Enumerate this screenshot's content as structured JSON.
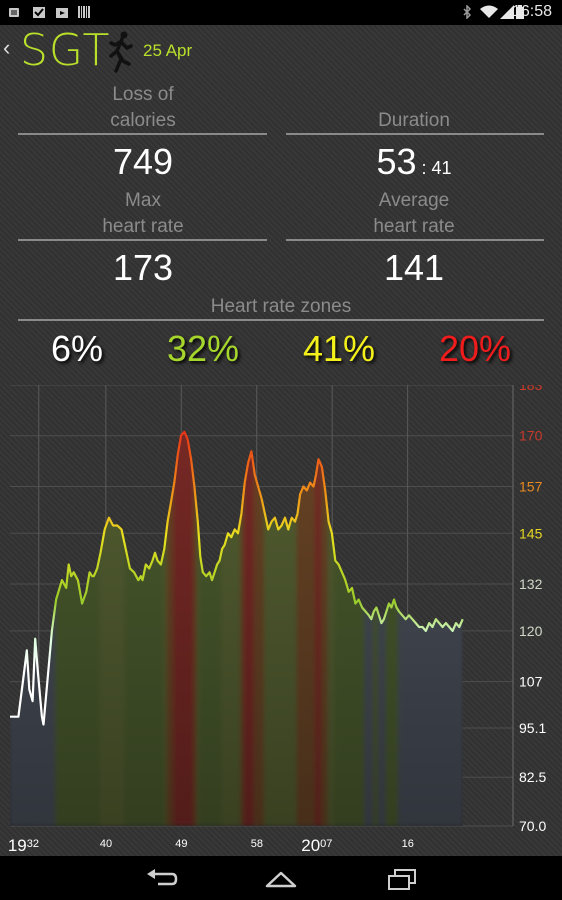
{
  "status_bar": {
    "time": "16:58",
    "icons": [
      "android-debug-icon",
      "checkbox-notification-icon",
      "bag-notification-icon",
      "barcode-notification-icon",
      "bluetooth-icon",
      "wifi-icon",
      "signal-icon",
      "battery-icon"
    ]
  },
  "header": {
    "title": "SGT",
    "date": "25 Apr",
    "icons": [
      "back-chevron-icon",
      "runner-icon"
    ]
  },
  "stats": {
    "calories": {
      "label_line1": "Loss of",
      "label_line2": "calories",
      "value": "749"
    },
    "duration": {
      "label": "Duration",
      "minutes": "53",
      "separator": ":",
      "seconds": "41"
    },
    "max_hr": {
      "label_line1": "Max",
      "label_line2": "heart rate",
      "value": "173"
    },
    "avg_hr": {
      "label_line1": "Average",
      "label_line2": "heart rate",
      "value": "141"
    }
  },
  "zones": {
    "title": "Heart rate zones",
    "items": [
      {
        "value": "6%",
        "color": "#ffffff"
      },
      {
        "value": "32%",
        "color": "#a6d62c"
      },
      {
        "value": "41%",
        "color": "#f3f01a"
      },
      {
        "value": "20%",
        "color": "#ee1c1c"
      }
    ]
  },
  "colors": {
    "accent": "#b9e02a",
    "background": "#333333",
    "grid": "#5a5a5a"
  },
  "chart_data": {
    "type": "area",
    "ylim": [
      70.0,
      183
    ],
    "y_ticks": [
      {
        "label": "183",
        "value": 183,
        "color": "#c93a2a"
      },
      {
        "label": "170",
        "value": 170,
        "color": "#c93a2a"
      },
      {
        "label": "157",
        "value": 157,
        "color": "#e88a1f"
      },
      {
        "label": "145",
        "value": 145,
        "color": "#e8d71f"
      },
      {
        "label": "132",
        "value": 132,
        "color": "#cfd8c8"
      },
      {
        "label": "120",
        "value": 120,
        "color": "#cfd8c8"
      },
      {
        "label": "107",
        "value": 107,
        "color": "#ffffff"
      },
      {
        "label": "95.1",
        "value": 95.1,
        "color": "#ffffff"
      },
      {
        "label": "82.5",
        "value": 82.5,
        "color": "#ffffff"
      },
      {
        "label": "70.0",
        "value": 70.0,
        "color": "#ffffff"
      }
    ],
    "x_range_minutes": [
      1170,
      1230
    ],
    "x_ticks": [
      {
        "minute": 1172,
        "hour": "19",
        "label": "32"
      },
      {
        "minute": 1180,
        "hour": "",
        "label": "40"
      },
      {
        "minute": 1189,
        "hour": "",
        "label": "49"
      },
      {
        "minute": 1198,
        "hour": "",
        "label": "58"
      },
      {
        "minute": 1207,
        "hour": "20",
        "label": "07"
      },
      {
        "minute": 1216,
        "hour": "",
        "label": "16"
      }
    ],
    "grid": true,
    "series": [
      {
        "x": [
          1170.0,
          1171.0,
          1171.6,
          1172.0,
          1172.3,
          1172.7,
          1173.0,
          1173.3,
          1173.8,
          1174.0,
          1174.5,
          1175.0,
          1175.5,
          1176.2,
          1176.7,
          1177.0,
          1177.3,
          1177.6,
          1178.1,
          1178.6,
          1179.1,
          1179.5,
          1179.8,
          1180.0,
          1180.4,
          1180.8,
          1181.3,
          1181.8,
          1182.3,
          1182.8,
          1183.3,
          1183.8,
          1184.3,
          1184.8,
          1185.3,
          1185.6,
          1185.8,
          1186.2,
          1186.6,
          1187.0,
          1187.3,
          1187.6,
          1188.0,
          1188.4,
          1188.8,
          1189.2,
          1189.6,
          1190.0,
          1190.4,
          1190.8,
          1191.2,
          1191.6,
          1192.0,
          1192.4,
          1192.7,
          1193.0,
          1193.4,
          1193.8,
          1194.1,
          1194.4,
          1194.7,
          1195.0,
          1195.3,
          1195.6,
          1196.0,
          1196.4,
          1196.8,
          1197.2,
          1197.6,
          1198.0,
          1198.4,
          1198.8,
          1199.2,
          1199.6,
          1200.0,
          1200.4,
          1200.8,
          1201.2,
          1201.6,
          1202.0,
          1202.4,
          1202.8,
          1203.2,
          1203.6,
          1204.0,
          1204.3,
          1204.6,
          1205.0,
          1205.4,
          1205.8,
          1206.2,
          1206.5,
          1206.8,
          1207.2,
          1207.6,
          1208.0,
          1208.4,
          1208.8,
          1209.2,
          1209.6,
          1210.0,
          1210.4,
          1210.8,
          1211.2,
          1211.6,
          1212.0,
          1212.4,
          1212.8,
          1213.1,
          1213.4,
          1213.7,
          1214.0,
          1214.3,
          1214.6,
          1214.9,
          1215.2,
          1215.5,
          1215.8,
          1216.1,
          1216.4,
          1216.8,
          1217.2,
          1217.6,
          1218.0,
          1218.4,
          1218.8,
          1219.2,
          1219.6,
          1220.0,
          1220.4,
          1220.8,
          1221.2,
          1221.6,
          1222.0,
          1222.4,
          1222.8,
          1223.2,
          1223.6,
          1224.0
        ],
        "y": [
          98,
          98,
          108,
          115,
          105,
          102,
          118,
          110,
          98,
          96,
          108,
          120,
          128,
          133,
          131,
          137,
          134,
          135,
          133,
          127,
          130,
          135,
          134,
          134,
          136,
          140,
          146,
          149,
          147,
          147,
          146,
          141,
          136,
          135,
          133,
          134,
          133,
          137,
          136,
          138,
          140,
          138,
          137,
          141,
          148,
          153,
          158,
          165,
          170,
          171,
          169,
          164,
          157,
          148,
          139,
          135,
          134,
          135,
          133,
          135,
          137,
          138,
          141,
          142,
          145,
          144,
          146,
          145,
          150,
          158,
          163,
          166,
          160,
          157,
          154,
          150,
          146,
          148,
          149,
          146,
          147,
          149,
          146,
          149,
          148,
          150,
          155,
          157,
          156,
          158,
          157,
          160,
          164,
          162,
          156,
          148,
          145,
          138,
          137,
          135,
          133,
          130,
          131,
          127,
          128,
          126,
          125,
          124,
          123,
          125,
          126,
          124,
          122,
          123,
          125,
          127,
          126,
          128,
          126,
          125,
          124,
          123,
          124,
          123,
          122,
          121,
          121,
          120,
          122,
          121,
          123,
          122,
          121,
          122,
          121,
          120,
          122,
          121,
          123
        ],
        "color_mapping": "heart-rate-gradient"
      }
    ]
  }
}
